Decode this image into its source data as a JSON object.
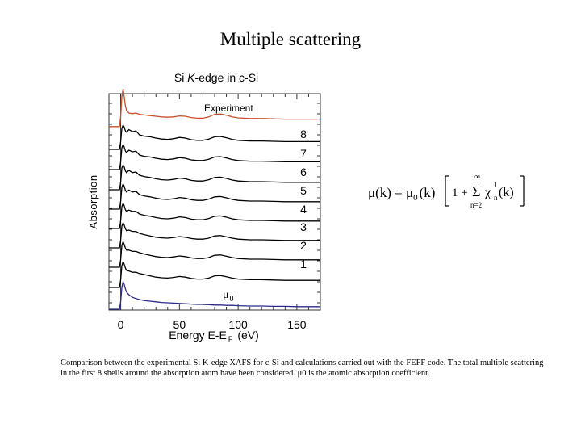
{
  "slide": {
    "title": "Multiple scattering",
    "caption": "Comparison between the experimental Si K-edge XAFS for c-Si and calculations carried out with the FEFF code. The total multiple scattering in the first 8 shells around the absorption atom have been considered. μ0 is the atomic absorption coefficient."
  },
  "formula": {
    "lhs": "μ(k) = μ",
    "lhs_sub": "0",
    "arg": "(k)",
    "one_plus": "1 + ",
    "sum_top": "∞",
    "sum": "Σ",
    "sum_bottom": "n=2",
    "chi": "χ",
    "chi_sup": "1",
    "chi_sub": "n",
    "chi_arg": "(k)"
  },
  "chart_data": {
    "type": "line",
    "title_prefix": "Si ",
    "title_italic": "K",
    "title_suffix": "-edge in c-Si",
    "xlabel": "Energy E-E",
    "xlabel_sub": "F",
    "xlabel_unit": "(eV)",
    "ylabel": "Absorption",
    "xlim": [
      -10,
      170
    ],
    "xticks": [
      0,
      50,
      100,
      150
    ],
    "vline_x": 0,
    "legend_experiment": "Experiment",
    "mu0_label": "μ",
    "mu0_sub": "0",
    "series_names": [
      "Experiment",
      "8",
      "7",
      "6",
      "5",
      "4",
      "3",
      "2",
      "1",
      "μ0"
    ],
    "series_colors": [
      "#c8502a",
      "#000000",
      "#000000",
      "#000000",
      "#000000",
      "#000000",
      "#000000",
      "#000000",
      "#000000",
      "#2a2a8c"
    ],
    "x": [
      -1,
      0,
      1,
      2,
      3,
      4,
      5,
      7,
      10,
      13,
      16,
      20,
      25,
      30,
      35,
      40,
      45,
      50,
      55,
      60,
      65,
      70,
      75,
      80,
      85,
      90,
      95,
      100,
      110,
      120,
      130,
      140,
      150,
      155
    ],
    "series": [
      {
        "name": "Experiment",
        "values": [
          0.08,
          0.4,
          1.0,
          1.25,
          1.0,
          0.72,
          0.58,
          0.5,
          0.48,
          0.5,
          0.46,
          0.44,
          0.42,
          0.4,
          0.38,
          0.37,
          0.38,
          0.41,
          0.4,
          0.36,
          0.34,
          0.34,
          0.38,
          0.46,
          0.47,
          0.43,
          0.38,
          0.35,
          0.33,
          0.33,
          0.32,
          0.31,
          0.31,
          0.31
        ]
      },
      {
        "name": "8",
        "values": [
          0.05,
          0.3,
          0.7,
          0.8,
          0.74,
          0.62,
          0.58,
          0.66,
          0.6,
          0.62,
          0.5,
          0.46,
          0.44,
          0.4,
          0.37,
          0.36,
          0.38,
          0.42,
          0.4,
          0.35,
          0.33,
          0.33,
          0.37,
          0.44,
          0.45,
          0.41,
          0.36,
          0.33,
          0.31,
          0.31,
          0.3,
          0.29,
          0.29,
          0.29
        ]
      },
      {
        "name": "7",
        "values": [
          0.05,
          0.3,
          0.72,
          0.82,
          0.75,
          0.62,
          0.58,
          0.65,
          0.6,
          0.62,
          0.5,
          0.46,
          0.44,
          0.4,
          0.37,
          0.36,
          0.38,
          0.42,
          0.4,
          0.35,
          0.33,
          0.33,
          0.37,
          0.44,
          0.45,
          0.41,
          0.36,
          0.33,
          0.31,
          0.31,
          0.3,
          0.29,
          0.29,
          0.29
        ]
      },
      {
        "name": "6",
        "values": [
          0.05,
          0.3,
          0.72,
          0.82,
          0.76,
          0.63,
          0.58,
          0.65,
          0.58,
          0.6,
          0.5,
          0.46,
          0.43,
          0.39,
          0.36,
          0.35,
          0.37,
          0.41,
          0.39,
          0.34,
          0.32,
          0.32,
          0.36,
          0.43,
          0.44,
          0.4,
          0.35,
          0.32,
          0.3,
          0.3,
          0.29,
          0.28,
          0.28,
          0.28
        ]
      },
      {
        "name": "5",
        "values": [
          0.05,
          0.3,
          0.72,
          0.83,
          0.76,
          0.63,
          0.58,
          0.64,
          0.58,
          0.6,
          0.5,
          0.46,
          0.43,
          0.39,
          0.36,
          0.35,
          0.37,
          0.41,
          0.39,
          0.34,
          0.32,
          0.32,
          0.36,
          0.43,
          0.44,
          0.4,
          0.35,
          0.32,
          0.3,
          0.3,
          0.29,
          0.28,
          0.28,
          0.28
        ]
      },
      {
        "name": "4",
        "values": [
          0.05,
          0.3,
          0.72,
          0.83,
          0.76,
          0.63,
          0.58,
          0.62,
          0.58,
          0.58,
          0.5,
          0.46,
          0.43,
          0.39,
          0.36,
          0.35,
          0.37,
          0.41,
          0.39,
          0.34,
          0.32,
          0.32,
          0.36,
          0.43,
          0.44,
          0.4,
          0.35,
          0.32,
          0.3,
          0.3,
          0.29,
          0.28,
          0.28,
          0.28
        ]
      },
      {
        "name": "3",
        "values": [
          0.05,
          0.3,
          0.72,
          0.83,
          0.76,
          0.64,
          0.58,
          0.6,
          0.56,
          0.56,
          0.5,
          0.46,
          0.42,
          0.38,
          0.36,
          0.35,
          0.37,
          0.4,
          0.38,
          0.34,
          0.32,
          0.32,
          0.35,
          0.42,
          0.43,
          0.39,
          0.35,
          0.32,
          0.3,
          0.3,
          0.29,
          0.28,
          0.28,
          0.28
        ]
      },
      {
        "name": "2",
        "values": [
          0.05,
          0.3,
          0.72,
          0.84,
          0.76,
          0.64,
          0.58,
          0.58,
          0.54,
          0.54,
          0.5,
          0.46,
          0.42,
          0.38,
          0.36,
          0.35,
          0.37,
          0.4,
          0.38,
          0.34,
          0.32,
          0.32,
          0.35,
          0.42,
          0.43,
          0.39,
          0.35,
          0.32,
          0.3,
          0.3,
          0.29,
          0.28,
          0.28,
          0.28
        ]
      },
      {
        "name": "1",
        "values": [
          0.05,
          0.3,
          0.72,
          0.85,
          0.77,
          0.65,
          0.58,
          0.56,
          0.52,
          0.52,
          0.48,
          0.45,
          0.41,
          0.37,
          0.35,
          0.34,
          0.36,
          0.39,
          0.37,
          0.33,
          0.31,
          0.31,
          0.34,
          0.41,
          0.42,
          0.38,
          0.34,
          0.31,
          0.29,
          0.29,
          0.28,
          0.27,
          0.27,
          0.27
        ]
      },
      {
        "name": "μ0",
        "values": [
          0.05,
          0.3,
          0.72,
          0.9,
          0.82,
          0.68,
          0.58,
          0.5,
          0.42,
          0.38,
          0.35,
          0.32,
          0.3,
          0.28,
          0.26,
          0.25,
          0.24,
          0.23,
          0.22,
          0.21,
          0.2,
          0.2,
          0.19,
          0.18,
          0.18,
          0.17,
          0.17,
          0.16,
          0.15,
          0.15,
          0.14,
          0.14,
          0.13,
          0.13
        ]
      }
    ],
    "grid": false,
    "legend": "right-edge labels"
  }
}
